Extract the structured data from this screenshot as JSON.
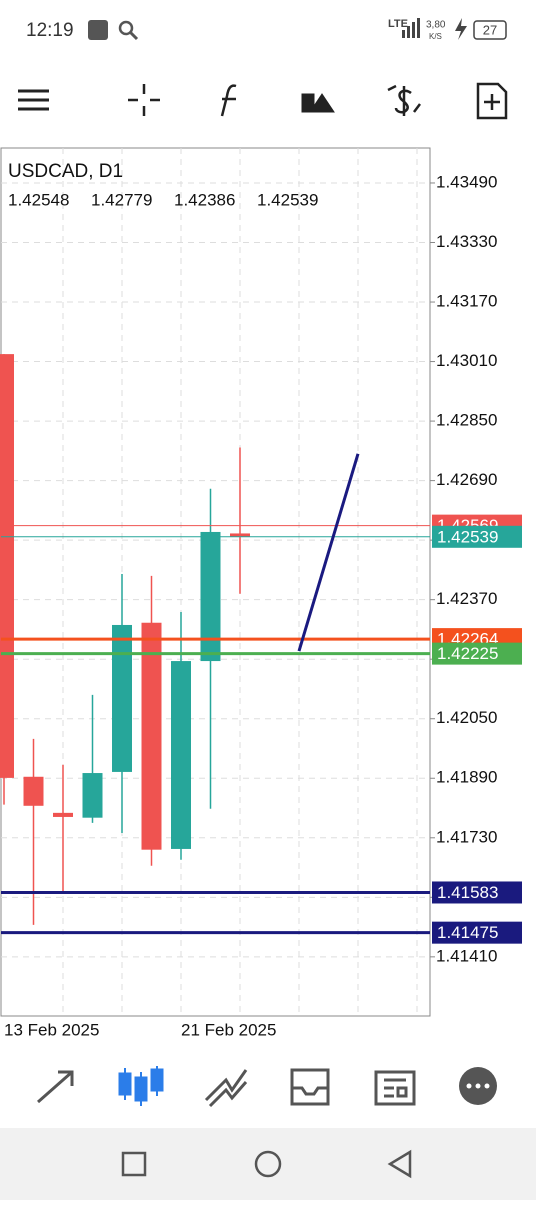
{
  "status_bar": {
    "time": "12:19",
    "network": "LTE",
    "speed": "3,80",
    "speed_unit": "K/S",
    "battery": "27"
  },
  "chart_data": {
    "type": "candlestick",
    "title": "USDCAD, D1",
    "categories": [
      "13 Feb 2025",
      null,
      null,
      null,
      null,
      null,
      "21 Feb 2025",
      null,
      null
    ],
    "open": [
      1.4303,
      1.41894,
      1.41797,
      1.41784,
      1.41907,
      1.42308,
      1.417,
      1.42205,
      1.42548
    ],
    "high": [
      1.4303,
      1.41996,
      1.41926,
      1.42114,
      1.42439,
      1.42434,
      1.42337,
      1.42668,
      1.42779
    ],
    "low": [
      1.41819,
      1.41496,
      1.41585,
      1.4177,
      1.41743,
      1.41655,
      1.41671,
      1.41808,
      1.42386
    ],
    "close": [
      1.41891,
      1.41816,
      1.41786,
      1.41904,
      1.42302,
      1.41698,
      1.42205,
      1.42552,
      1.42539
    ],
    "up_color": "#26a69a",
    "down_color": "#ef5350",
    "ylim": [
      1.41251,
      1.43584
    ],
    "yticks": [
      {
        "value": 1.4349,
        "label": "1.43490"
      },
      {
        "value": 1.4333,
        "label": "1.43330"
      },
      {
        "value": 1.4317,
        "label": "1.43170"
      },
      {
        "value": 1.4301,
        "label": "1.43010"
      },
      {
        "value": 1.4285,
        "label": "1.42850"
      },
      {
        "value": 1.4269,
        "label": "1.42690"
      },
      {
        "value": 1.4253,
        "label": "1.42530"
      },
      {
        "value": 1.4237,
        "label": "1.42370"
      },
      {
        "value": 1.4221,
        "label": "1.42210"
      },
      {
        "value": 1.4205,
        "label": "1.42050"
      },
      {
        "value": 1.4189,
        "label": "1.41890"
      },
      {
        "value": 1.4173,
        "label": "1.41730"
      },
      {
        "value": 1.4157,
        "label": "1.41570"
      },
      {
        "value": 1.4141,
        "label": "1.41410"
      }
    ],
    "grid": true,
    "levels": [
      {
        "value": 1.42569,
        "color": "#ef5350",
        "width": 1
      },
      {
        "value": 1.42539,
        "color": "#26a69a",
        "width": 1
      },
      {
        "value": 1.42264,
        "color": "#f4511e",
        "width": 3
      },
      {
        "value": 1.42225,
        "color": "#4caf50",
        "width": 3
      },
      {
        "value": 1.41583,
        "color": "#1a1a7e",
        "width": 3
      },
      {
        "value": 1.41475,
        "color": "#1a1a7e",
        "width": 3
      }
    ],
    "trendline": {
      "x": [
        10,
        12
      ],
      "values": [
        1.42232,
        1.42762
      ],
      "color": "#1a1a80"
    }
  }
}
